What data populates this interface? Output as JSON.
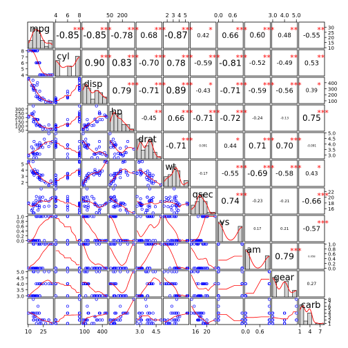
{
  "chart_data": {
    "type": "scatter-matrix",
    "variables": [
      "mpg",
      "cyl",
      "disp",
      "hp",
      "drat",
      "wt",
      "qsec",
      "vs",
      "am",
      "gear",
      "carb"
    ],
    "ranges": [
      [
        10.4,
        33.9
      ],
      [
        4,
        8
      ],
      [
        71.1,
        472
      ],
      [
        52,
        335
      ],
      [
        2.76,
        4.93
      ],
      [
        1.513,
        5.424
      ],
      [
        14.5,
        22.9
      ],
      [
        0,
        1
      ],
      [
        0,
        1
      ],
      [
        3,
        5
      ],
      [
        1,
        8
      ]
    ],
    "ticks": {
      "mpg": [
        "10",
        "25"
      ],
      "cyl": [
        "4",
        "6",
        "8"
      ],
      "disp": [
        "100",
        "400"
      ],
      "hp": [
        "50",
        "200"
      ],
      "drat": [
        "3.0",
        "4.5"
      ],
      "wt": [
        "2",
        "3",
        "4",
        "5"
      ],
      "qsec": [
        "16",
        "20"
      ],
      "vs": [
        "0.0",
        "0.6"
      ],
      "am": [
        "0.0",
        "0.6"
      ],
      "gear": [
        "3.0",
        "4.0",
        "5.0"
      ],
      "carb": [
        "1",
        "4",
        "7"
      ]
    },
    "tick_values": {
      "mpg_bottom": [
        10,
        25
      ],
      "cyl_top": [
        4,
        6,
        8
      ],
      "disp_bottom": [
        100,
        400
      ],
      "hp_top": [
        50,
        200
      ],
      "drat_bottom": [
        3.0,
        4.5
      ],
      "wt_top": [
        2,
        3,
        4,
        5
      ],
      "qsec_bottom": [
        16,
        20
      ],
      "vs_top": [
        0.0,
        0.6
      ],
      "am_bottom": [
        0.0,
        0.6
      ],
      "gear_top": [
        3.0,
        4.0,
        5.0
      ],
      "carb_bottom": [
        1,
        4,
        7
      ]
    },
    "left_axis_ticks": {
      "cyl": [
        "4",
        "5",
        "6",
        "7",
        "8"
      ],
      "hp": [
        "50",
        "100",
        "150",
        "200",
        "250",
        "300"
      ],
      "wt": [
        "2",
        "3",
        "4",
        "5"
      ],
      "vs": [
        "0.0",
        "0.2",
        "0.4",
        "0.6",
        "0.8",
        "1.0"
      ],
      "gear": [
        "3.0",
        "3.5",
        "4.0",
        "4.5",
        "5.0"
      ]
    },
    "right_axis_ticks": {
      "mpg": [
        "10",
        "15",
        "20",
        "25",
        "30"
      ],
      "disp": [
        "100",
        "200",
        "300",
        "400"
      ],
      "drat": [
        "3.0",
        "3.5",
        "4.0",
        "4.5",
        "5.0"
      ],
      "qsec": [
        "16",
        "18",
        "20",
        "22"
      ],
      "am": [
        "0.0",
        "0.2",
        "0.4",
        "0.6",
        "0.8",
        "1.0"
      ],
      "carb": [
        "1",
        "2",
        "3",
        "4",
        "5",
        "6",
        "7",
        "8"
      ]
    },
    "correlations": [
      {
        "r": 0,
        "c": 1,
        "value": "-0.85",
        "stars": "***"
      },
      {
        "r": 0,
        "c": 2,
        "value": "-0.85",
        "stars": "***"
      },
      {
        "r": 0,
        "c": 3,
        "value": "-0.78",
        "stars": "***"
      },
      {
        "r": 0,
        "c": 4,
        "value": "0.68",
        "stars": "***"
      },
      {
        "r": 0,
        "c": 5,
        "value": "-0.87",
        "stars": "***"
      },
      {
        "r": 0,
        "c": 6,
        "value": "0.42",
        "stars": "*"
      },
      {
        "r": 0,
        "c": 7,
        "value": "0.66",
        "stars": "***"
      },
      {
        "r": 0,
        "c": 8,
        "value": "0.60",
        "stars": "***"
      },
      {
        "r": 0,
        "c": 9,
        "value": "0.48",
        "stars": "**"
      },
      {
        "r": 0,
        "c": 10,
        "value": "-0.55",
        "stars": "**"
      },
      {
        "r": 1,
        "c": 2,
        "value": "0.90",
        "stars": "***"
      },
      {
        "r": 1,
        "c": 3,
        "value": "0.83",
        "stars": "***"
      },
      {
        "r": 1,
        "c": 4,
        "value": "-0.70",
        "stars": "***"
      },
      {
        "r": 1,
        "c": 5,
        "value": "0.78",
        "stars": "***"
      },
      {
        "r": 1,
        "c": 6,
        "value": "-0.59",
        "stars": "***"
      },
      {
        "r": 1,
        "c": 7,
        "value": "-0.81",
        "stars": "***"
      },
      {
        "r": 1,
        "c": 8,
        "value": "-0.52",
        "stars": "**"
      },
      {
        "r": 1,
        "c": 9,
        "value": "-0.49",
        "stars": "**"
      },
      {
        "r": 1,
        "c": 10,
        "value": "0.53",
        "stars": "**"
      },
      {
        "r": 2,
        "c": 3,
        "value": "0.79",
        "stars": "***"
      },
      {
        "r": 2,
        "c": 4,
        "value": "-0.71",
        "stars": "***"
      },
      {
        "r": 2,
        "c": 5,
        "value": "0.89",
        "stars": "***"
      },
      {
        "r": 2,
        "c": 6,
        "value": "-0.43",
        "stars": "*"
      },
      {
        "r": 2,
        "c": 7,
        "value": "-0.71",
        "stars": "***"
      },
      {
        "r": 2,
        "c": 8,
        "value": "-0.59",
        "stars": "***"
      },
      {
        "r": 2,
        "c": 9,
        "value": "-0.56",
        "stars": "***"
      },
      {
        "r": 2,
        "c": 10,
        "value": "0.39",
        "stars": "*"
      },
      {
        "r": 3,
        "c": 4,
        "value": "-0.45",
        "stars": "**"
      },
      {
        "r": 3,
        "c": 5,
        "value": "0.66",
        "stars": "***"
      },
      {
        "r": 3,
        "c": 6,
        "value": "-0.71",
        "stars": "***"
      },
      {
        "r": 3,
        "c": 7,
        "value": "-0.72",
        "stars": "***"
      },
      {
        "r": 3,
        "c": 8,
        "value": "-0.24",
        "stars": ""
      },
      {
        "r": 3,
        "c": 9,
        "value": "-0.13",
        "stars": ""
      },
      {
        "r": 3,
        "c": 10,
        "value": "0.75",
        "stars": "***"
      },
      {
        "r": 4,
        "c": 5,
        "value": "-0.71",
        "stars": "***"
      },
      {
        "r": 4,
        "c": 6,
        "value": "0.091",
        "stars": ""
      },
      {
        "r": 4,
        "c": 7,
        "value": "0.44",
        "stars": "*"
      },
      {
        "r": 4,
        "c": 8,
        "value": "0.71",
        "stars": "***"
      },
      {
        "r": 4,
        "c": 9,
        "value": "0.70",
        "stars": "***"
      },
      {
        "r": 4,
        "c": 10,
        "value": "-0.091",
        "stars": ""
      },
      {
        "r": 5,
        "c": 6,
        "value": "-0.17",
        "stars": ""
      },
      {
        "r": 5,
        "c": 7,
        "value": "-0.55",
        "stars": "***"
      },
      {
        "r": 5,
        "c": 8,
        "value": "-0.69",
        "stars": "***"
      },
      {
        "r": 5,
        "c": 9,
        "value": "-0.58",
        "stars": "***"
      },
      {
        "r": 5,
        "c": 10,
        "value": "0.43",
        "stars": "*"
      },
      {
        "r": 6,
        "c": 7,
        "value": "0.74",
        "stars": "***"
      },
      {
        "r": 6,
        "c": 8,
        "value": "-0.23",
        "stars": ""
      },
      {
        "r": 6,
        "c": 9,
        "value": "-0.21",
        "stars": ""
      },
      {
        "r": 6,
        "c": 10,
        "value": "-0.66",
        "stars": "***"
      },
      {
        "r": 7,
        "c": 8,
        "value": "0.17",
        "stars": ""
      },
      {
        "r": 7,
        "c": 9,
        "value": "0.21",
        "stars": ""
      },
      {
        "r": 7,
        "c": 10,
        "value": "-0.57",
        "stars": "***"
      },
      {
        "r": 8,
        "c": 9,
        "value": "0.79",
        "stars": "***"
      },
      {
        "r": 8,
        "c": 10,
        "value": "0.058",
        "stars": ""
      },
      {
        "r": 9,
        "c": 10,
        "value": "0.27",
        "stars": ""
      }
    ],
    "observations": [
      [
        21.0,
        6,
        160.0,
        110,
        3.9,
        2.62,
        16.46,
        0,
        1,
        4,
        4
      ],
      [
        21.0,
        6,
        160.0,
        110,
        3.9,
        2.875,
        17.02,
        0,
        1,
        4,
        4
      ],
      [
        22.8,
        4,
        108.0,
        93,
        3.85,
        2.32,
        18.61,
        1,
        1,
        4,
        1
      ],
      [
        21.4,
        6,
        258.0,
        110,
        3.08,
        3.215,
        19.44,
        1,
        0,
        3,
        1
      ],
      [
        18.7,
        8,
        360.0,
        175,
        3.15,
        3.44,
        17.02,
        0,
        0,
        3,
        2
      ],
      [
        18.1,
        6,
        225.0,
        105,
        2.76,
        3.46,
        20.22,
        1,
        0,
        3,
        1
      ],
      [
        14.3,
        8,
        360.0,
        245,
        3.21,
        3.57,
        15.84,
        0,
        0,
        3,
        4
      ],
      [
        24.4,
        4,
        146.7,
        62,
        3.69,
        3.19,
        20.0,
        1,
        0,
        4,
        2
      ],
      [
        22.8,
        4,
        140.8,
        95,
        3.92,
        3.15,
        22.9,
        1,
        0,
        4,
        2
      ],
      [
        19.2,
        6,
        167.6,
        123,
        3.92,
        3.44,
        18.3,
        1,
        0,
        4,
        4
      ],
      [
        17.8,
        6,
        167.6,
        123,
        3.92,
        3.44,
        18.9,
        1,
        0,
        4,
        4
      ],
      [
        16.4,
        8,
        275.8,
        180,
        3.07,
        4.07,
        17.4,
        0,
        0,
        3,
        3
      ],
      [
        17.3,
        8,
        275.8,
        180,
        3.07,
        3.73,
        17.6,
        0,
        0,
        3,
        3
      ],
      [
        15.2,
        8,
        275.8,
        180,
        3.07,
        3.78,
        18.0,
        0,
        0,
        3,
        3
      ],
      [
        10.4,
        8,
        472.0,
        205,
        2.93,
        5.25,
        17.98,
        0,
        0,
        3,
        4
      ],
      [
        10.4,
        8,
        460.0,
        215,
        3.0,
        5.424,
        17.82,
        0,
        0,
        3,
        4
      ],
      [
        14.7,
        8,
        440.0,
        230,
        3.23,
        5.345,
        17.42,
        0,
        0,
        3,
        4
      ],
      [
        32.4,
        4,
        78.7,
        66,
        4.08,
        2.2,
        19.47,
        1,
        1,
        4,
        1
      ],
      [
        30.4,
        4,
        75.7,
        52,
        4.93,
        1.615,
        18.52,
        1,
        1,
        4,
        2
      ],
      [
        33.9,
        4,
        71.1,
        65,
        4.22,
        1.835,
        19.9,
        1,
        1,
        4,
        1
      ],
      [
        21.5,
        4,
        120.1,
        97,
        3.7,
        2.465,
        20.01,
        1,
        0,
        3,
        1
      ],
      [
        15.5,
        8,
        318.0,
        150,
        2.76,
        3.52,
        16.87,
        0,
        0,
        3,
        2
      ],
      [
        15.2,
        8,
        304.0,
        150,
        3.15,
        3.435,
        17.3,
        0,
        0,
        3,
        2
      ],
      [
        13.3,
        8,
        350.0,
        245,
        3.73,
        3.84,
        15.41,
        0,
        0,
        3,
        4
      ],
      [
        19.2,
        8,
        400.0,
        175,
        3.08,
        3.845,
        17.05,
        0,
        0,
        3,
        2
      ],
      [
        27.3,
        4,
        79.0,
        66,
        4.08,
        1.935,
        18.9,
        1,
        1,
        4,
        1
      ],
      [
        26.0,
        4,
        120.3,
        91,
        4.43,
        2.14,
        16.7,
        0,
        1,
        5,
        2
      ],
      [
        30.4,
        4,
        95.1,
        113,
        3.77,
        1.513,
        16.9,
        1,
        1,
        5,
        2
      ],
      [
        15.8,
        8,
        351.0,
        264,
        4.22,
        3.17,
        14.5,
        0,
        1,
        5,
        4
      ],
      [
        19.7,
        6,
        145.0,
        175,
        3.62,
        2.77,
        15.5,
        0,
        1,
        5,
        6
      ],
      [
        15.0,
        8,
        301.0,
        335,
        3.54,
        3.57,
        14.6,
        0,
        1,
        5,
        8
      ],
      [
        21.4,
        4,
        121.0,
        109,
        4.11,
        2.78,
        18.6,
        1,
        1,
        4,
        2
      ]
    ]
  }
}
